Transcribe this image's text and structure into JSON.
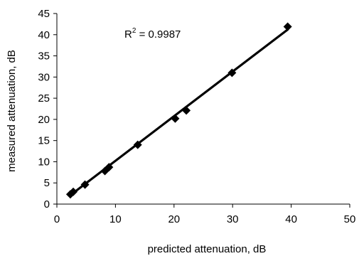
{
  "chart_data": {
    "type": "scatter",
    "xlabel": "predicted attenuation, dB",
    "ylabel": "measured attenuation, dB",
    "xlim": [
      0,
      50
    ],
    "ylim": [
      0,
      45
    ],
    "x_ticks": [
      0,
      10,
      20,
      30,
      40,
      50
    ],
    "y_ticks": [
      0,
      5,
      10,
      15,
      20,
      25,
      30,
      35,
      40,
      45
    ],
    "grid": false,
    "series": [
      {
        "marker": "diamond",
        "color": "#000000",
        "points": [
          {
            "x": 2.3,
            "y": 2.3
          },
          {
            "x": 2.8,
            "y": 2.9
          },
          {
            "x": 4.8,
            "y": 4.6
          },
          {
            "x": 8.2,
            "y": 7.8
          },
          {
            "x": 8.9,
            "y": 8.7
          },
          {
            "x": 13.8,
            "y": 14.0
          },
          {
            "x": 20.2,
            "y": 20.2
          },
          {
            "x": 22.1,
            "y": 22.1
          },
          {
            "x": 29.9,
            "y": 31.0
          },
          {
            "x": 39.4,
            "y": 41.9
          }
        ]
      }
    ],
    "trendline": {
      "x": [
        2.2,
        39.4
      ],
      "y": [
        2.0,
        41.2
      ],
      "color": "#000000"
    },
    "annotation": {
      "prefix": "R",
      "superscript": "2",
      "text": " = 0.9987"
    }
  }
}
